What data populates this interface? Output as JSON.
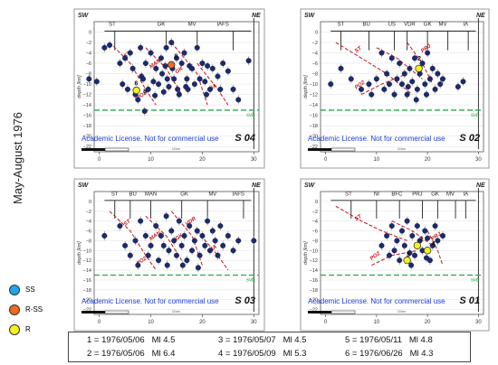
{
  "vertical_label": "May-August 1976",
  "legend": [
    {
      "label": "SS",
      "color": "#1ea7e8"
    },
    {
      "label": "R-SS",
      "color": "#f06a1c"
    },
    {
      "label": "R",
      "color": "#f4ef1e"
    }
  ],
  "events": [
    {
      "num": "1",
      "date": "1976/05/06",
      "mag": "Ml 4.5"
    },
    {
      "num": "2",
      "date": "1976/05/06",
      "mag": "Ml 6.4"
    },
    {
      "num": "3",
      "date": "1976/05/07",
      "mag": "Ml 4.5"
    },
    {
      "num": "4",
      "date": "1976/05/09",
      "mag": "Ml 5.3"
    },
    {
      "num": "5",
      "date": "1976/05/11",
      "mag": "Ml 4.8"
    },
    {
      "num": "6",
      "date": "1976/06/26",
      "mag": "Ml 4.3"
    }
  ],
  "chart_data": [
    {
      "type": "scatter",
      "title": "S 04",
      "ylabel": "depth [km]",
      "left_label": "SW",
      "right_label": "NE",
      "xlim": [
        -1,
        31
      ],
      "ylim": [
        -23,
        2
      ],
      "xticks": [
        0,
        10,
        20,
        30
      ],
      "yticks": [
        0,
        -2,
        -4,
        -6,
        -8,
        -10,
        -12,
        -14,
        -16,
        -18,
        -20,
        -22
      ],
      "fault_labels": [
        "ST",
        "GK",
        "MV",
        "IAFS"
      ],
      "dip_labels": [
        "ST",
        "MAN",
        "GK",
        "IA",
        "PO2"
      ],
      "reference_line": {
        "label": "svb",
        "depth": -15
      },
      "watermark": "Academic License. Not for commercial use",
      "scale_label": "10 km",
      "series": [
        {
          "name": "SS",
          "points": []
        },
        {
          "name": "R-SS",
          "points": [
            [
              14,
              -6.3
            ]
          ]
        },
        {
          "name": "R",
          "points": [
            [
              7.2,
              -11.2
            ]
          ]
        },
        {
          "points": [
            [
              -2,
              -9
            ],
            [
              -0.5,
              -9.5
            ],
            [
              1,
              -3
            ],
            [
              2,
              -2.5
            ],
            [
              4,
              -6
            ],
            [
              4.5,
              -10
            ],
            [
              5,
              -5
            ],
            [
              5.5,
              -11
            ],
            [
              6,
              -4
            ],
            [
              6.5,
              -7
            ],
            [
              7,
              -12
            ],
            [
              7.5,
              -13
            ],
            [
              8,
              -3
            ],
            [
              8.2,
              -8.5
            ],
            [
              8.5,
              -9
            ],
            [
              9,
              -6
            ],
            [
              9.5,
              -11
            ],
            [
              10,
              -4
            ],
            [
              10.5,
              -9.5
            ],
            [
              11,
              -7
            ],
            [
              11.5,
              -10
            ],
            [
              12,
              -5
            ],
            [
              12.2,
              -8
            ],
            [
              12.5,
              -11.5
            ],
            [
              13,
              -3
            ],
            [
              13.2,
              -9
            ],
            [
              13.5,
              -10.5
            ],
            [
              14,
              -2
            ],
            [
              14.2,
              -7
            ],
            [
              14.5,
              -9
            ],
            [
              15,
              -5
            ],
            [
              15.2,
              -11
            ],
            [
              15.5,
              -12
            ],
            [
              16,
              -6
            ],
            [
              16.5,
              -4
            ],
            [
              17,
              -9
            ],
            [
              17.2,
              -11
            ],
            [
              17.5,
              -6.5
            ],
            [
              18,
              -7
            ],
            [
              18.5,
              -10
            ],
            [
              19,
              -3
            ],
            [
              19.5,
              -9
            ],
            [
              20,
              -6
            ],
            [
              20.5,
              -9.5
            ],
            [
              21,
              -6.5
            ],
            [
              21.5,
              -11
            ],
            [
              22,
              -7
            ],
            [
              23,
              -8.5
            ],
            [
              23.5,
              -11
            ],
            [
              24,
              -6
            ],
            [
              25,
              -7.5
            ],
            [
              26,
              -11
            ],
            [
              27,
              -13
            ],
            [
              29,
              -5.5
            ],
            [
              10.8,
              -12.2
            ],
            [
              8.8,
              -15.2
            ],
            [
              12.8,
              -6.5
            ],
            [
              16.8,
              -10.5
            ],
            [
              20.8,
              -12
            ]
          ]
        }
      ],
      "event_labels": [
        {
          "id": "8",
          "x": 14,
          "y": -5
        },
        {
          "id": "6",
          "x": 6.3,
          "y": -10.2
        },
        {
          "id": "5",
          "x": 8,
          "y": -11.8
        }
      ]
    },
    {
      "type": "scatter",
      "title": "S 02",
      "ylabel": "depth [km]",
      "left_label": "SW",
      "right_label": "NE",
      "xlim": [
        -1,
        31
      ],
      "ylim": [
        -23,
        2
      ],
      "xticks": [
        0,
        10,
        20,
        30
      ],
      "yticks": [
        0,
        -2,
        -4,
        -6,
        -8,
        -10,
        -12,
        -14,
        -16,
        -18,
        -20,
        -22
      ],
      "fault_labels": [
        "ST",
        "BU",
        "US",
        "VDR",
        "GK",
        "MV",
        "IA"
      ],
      "dip_labels": [
        "ST",
        "PRJ",
        "PO2"
      ],
      "reference_line": {
        "label": "svb",
        "depth": -15
      },
      "watermark": "Academic License. Not for commercial use",
      "scale_label": "10 km",
      "series": [
        {
          "name": "SS",
          "points": []
        },
        {
          "name": "R-SS",
          "points": []
        },
        {
          "name": "R",
          "points": [
            [
              18.3,
              -7
            ]
          ]
        },
        {
          "points": [
            [
              1,
              -10
            ],
            [
              3,
              -7
            ],
            [
              5,
              -9
            ],
            [
              7,
              -11
            ],
            [
              8.5,
              -10
            ],
            [
              9,
              -12
            ],
            [
              10,
              -9
            ],
            [
              11,
              -4
            ],
            [
              11.5,
              -11
            ],
            [
              12,
              -8
            ],
            [
              12.5,
              -10
            ],
            [
              13,
              -5
            ],
            [
              13.5,
              -12
            ],
            [
              14,
              -9
            ],
            [
              14.5,
              -6
            ],
            [
              15,
              -10
            ],
            [
              15.5,
              -8
            ],
            [
              16,
              -12
            ],
            [
              16.5,
              -7
            ],
            [
              17,
              -9.5
            ],
            [
              17.5,
              -5
            ],
            [
              18,
              -11
            ],
            [
              18.5,
              -8
            ],
            [
              19,
              -6
            ],
            [
              19.5,
              -10
            ],
            [
              20,
              -4
            ],
            [
              20.5,
              -9
            ],
            [
              21,
              -7
            ],
            [
              21.5,
              -11
            ],
            [
              22,
              -8
            ],
            [
              22.5,
              -10
            ],
            [
              23,
              -9
            ],
            [
              26,
              -10.5
            ],
            [
              27,
              -9.5
            ],
            [
              16.2,
              -10.5
            ],
            [
              19.8,
              -12
            ],
            [
              17.8,
              -13
            ]
          ]
        }
      ],
      "event_labels": [
        {
          "id": "2",
          "x": 17.5,
          "y": -5.5
        }
      ]
    },
    {
      "type": "scatter",
      "title": "S 03",
      "ylabel": "depth [km]",
      "left_label": "SW",
      "right_label": "NE",
      "xlim": [
        -1,
        31
      ],
      "ylim": [
        -23,
        2
      ],
      "xticks": [
        0,
        10,
        20,
        30
      ],
      "yticks": [
        0,
        -2,
        -4,
        -6,
        -8,
        -10,
        -12,
        -14,
        -16,
        -18,
        -20,
        -22
      ],
      "fault_labels": [
        "ST",
        "BU",
        "MAN",
        "GK",
        "MV",
        "IAFS"
      ],
      "dip_labels": [
        "ST",
        "MAN",
        "GK",
        "VDR",
        "IA",
        "PO2"
      ],
      "reference_line": {
        "label": "svb",
        "depth": -15
      },
      "watermark": "Academic License. Not for commercial use",
      "scale_label": "10 km",
      "series": [
        {
          "name": "SS",
          "points": []
        },
        {
          "name": "R-SS",
          "points": []
        },
        {
          "name": "R",
          "points": []
        },
        {
          "points": [
            [
              1,
              -7
            ],
            [
              4,
              -5
            ],
            [
              5,
              -9
            ],
            [
              6,
              -11
            ],
            [
              7,
              -8
            ],
            [
              7.5,
              -13
            ],
            [
              8,
              -4
            ],
            [
              9,
              -7
            ],
            [
              9.5,
              -11
            ],
            [
              10,
              -9
            ],
            [
              11,
              -5
            ],
            [
              11.5,
              -12
            ],
            [
              12,
              -7
            ],
            [
              12.5,
              -9
            ],
            [
              13,
              -3
            ],
            [
              13.5,
              -10
            ],
            [
              14,
              -6
            ],
            [
              14.5,
              -8
            ],
            [
              15,
              -11
            ],
            [
              15.5,
              -4
            ],
            [
              16,
              -9
            ],
            [
              16.5,
              -7
            ],
            [
              17,
              -12
            ],
            [
              17.5,
              -5
            ],
            [
              18,
              -10
            ],
            [
              18.5,
              -8
            ],
            [
              19,
              -6
            ],
            [
              19.5,
              -11
            ],
            [
              20,
              -7
            ],
            [
              20.5,
              -9
            ],
            [
              21,
              -4
            ],
            [
              21.5,
              -10
            ],
            [
              22,
              -6
            ],
            [
              22.5,
              -8
            ],
            [
              23,
              -11
            ],
            [
              23.5,
              -5
            ],
            [
              24,
              -9
            ],
            [
              25,
              -7
            ],
            [
              26,
              -10
            ],
            [
              27,
              -8
            ],
            [
              30,
              -8
            ],
            [
              16.2,
              -13
            ],
            [
              19.2,
              -13.5
            ],
            [
              13.2,
              -13
            ]
          ]
        }
      ]
    },
    {
      "type": "scatter",
      "title": "S 01",
      "ylabel": "depth [km]",
      "left_label": "SW",
      "right_label": "NE",
      "xlim": [
        -1,
        31
      ],
      "ylim": [
        -23,
        2
      ],
      "xticks": [
        0,
        10,
        20,
        30
      ],
      "yticks": [
        0,
        -2,
        -4,
        -6,
        -8,
        -10,
        -12,
        -14,
        -16,
        -18,
        -20,
        -22
      ],
      "fault_labels": [
        "ST",
        "NI",
        "BFC",
        "PRJ",
        "GK",
        "MV",
        "IA"
      ],
      "dip_labels": [
        "ST",
        "PO2",
        "PRJ"
      ],
      "reference_line": {
        "label": "svb",
        "depth": -15
      },
      "watermark": "Academic License. Not for commercial use",
      "scale_label": "10 km",
      "series": [
        {
          "name": "SS",
          "points": []
        },
        {
          "name": "R-SS",
          "points": []
        },
        {
          "name": "R",
          "points": [
            [
              16,
              -12
            ],
            [
              18,
              -9
            ],
            [
              20,
              -10
            ]
          ]
        },
        {
          "points": [
            [
              11,
              -9
            ],
            [
              12,
              -7
            ],
            [
              12.5,
              -11
            ],
            [
              13,
              -5
            ],
            [
              13.5,
              -10
            ],
            [
              14,
              -8
            ],
            [
              14.5,
              -12
            ],
            [
              15,
              -6
            ],
            [
              15.5,
              -9
            ],
            [
              16,
              -4
            ],
            [
              16.5,
              -10.5
            ],
            [
              17,
              -7
            ],
            [
              17.5,
              -11
            ],
            [
              18,
              -5
            ],
            [
              18.5,
              -8
            ],
            [
              19,
              -10
            ],
            [
              19.5,
              -6
            ],
            [
              20,
              -7.5
            ],
            [
              20.5,
              -12
            ],
            [
              21,
              -9
            ],
            [
              21.5,
              -5
            ],
            [
              22,
              -8
            ],
            [
              23,
              -7
            ],
            [
              16.8,
              -13
            ],
            [
              19.8,
              -11.5
            ]
          ]
        }
      ],
      "event_labels": [
        {
          "id": "1",
          "x": 18,
          "y": -8
        },
        {
          "id": "3",
          "x": 15.3,
          "y": -11.2
        },
        {
          "id": "4",
          "x": 20.3,
          "y": -9
        }
      ]
    }
  ]
}
